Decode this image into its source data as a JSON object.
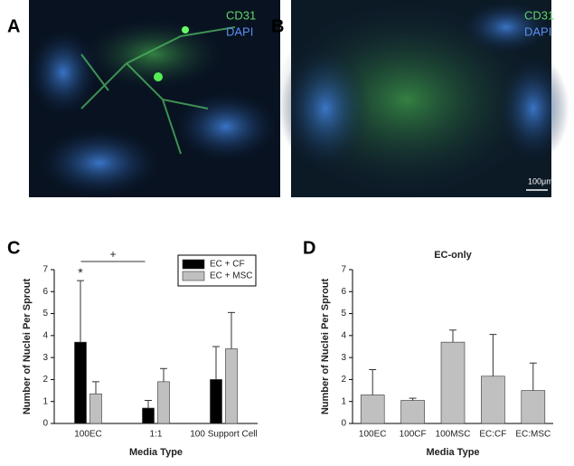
{
  "images": [
    {
      "panel_label": "A",
      "stains": [
        "CD31",
        "DAPI"
      ]
    },
    {
      "panel_label": "B",
      "stains": [
        "CD31",
        "DAPI"
      ],
      "scale_bar": "100μm"
    }
  ],
  "chart_data": [
    {
      "type": "bar",
      "panel_label": "C",
      "x_label": "Media Type",
      "y_label": "Number of Nuclei Per Sprout",
      "categories": [
        "100EC",
        "1:1",
        "100 Support Cell"
      ],
      "series": [
        {
          "name": "EC + CF",
          "color": "#000000",
          "values": [
            3.7,
            0.7,
            2.0
          ],
          "errors": [
            2.8,
            0.35,
            1.5
          ]
        },
        {
          "name": "EC + MSC",
          "color": "#c0c0c0",
          "values": [
            1.35,
            1.9,
            3.4
          ],
          "errors": [
            0.55,
            0.6,
            1.65
          ]
        }
      ],
      "annotations": [
        {
          "text": "*"
        },
        {
          "text": "+"
        }
      ],
      "ylim": [
        0,
        7
      ],
      "yticks": [
        0,
        1,
        2,
        3,
        4,
        5,
        6,
        7
      ],
      "legend": "top-right"
    },
    {
      "type": "bar",
      "panel_label": "D",
      "title": "EC-only",
      "x_label": "Media Type",
      "y_label": "Number of Nuclei Per Sprout",
      "categories": [
        "100EC",
        "100CF",
        "100MSC",
        "EC:CF",
        "EC:MSC"
      ],
      "series": [
        {
          "color": "#c0c0c0",
          "values": [
            1.3,
            1.05,
            3.7,
            2.15,
            1.5
          ],
          "errors": [
            1.15,
            0.1,
            0.55,
            1.9,
            1.25
          ]
        }
      ],
      "ylim": [
        0,
        7
      ],
      "yticks": [
        0,
        1,
        2,
        3,
        4,
        5,
        6,
        7
      ]
    }
  ]
}
